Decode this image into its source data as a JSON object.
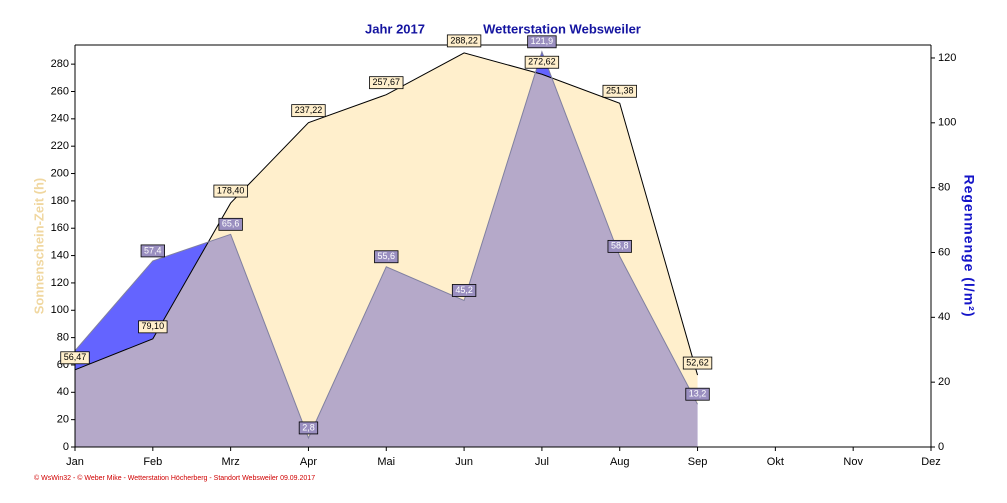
{
  "chart_data": {
    "type": "area",
    "title": "Jahr  2017",
    "subtitle": "Wetterstation Websweiler",
    "ylabel": "Sonnenschein-Zeit  (h)",
    "y2label": "Regenmenge  (l/m²)",
    "footer": "© WsWin32 - © Weber Mike - Wetterstation Höcherberg - Standort Websweiler 09.09.2017",
    "categories": [
      "Jan",
      "Feb",
      "Mrz",
      "Apr",
      "Mai",
      "Jun",
      "Jul",
      "Aug",
      "Sep",
      "Okt",
      "Nov",
      "Dez"
    ],
    "series": [
      {
        "name": "Sonnenschein-Zeit",
        "color": "#ffefcc",
        "values": [
          56.47,
          79.1,
          178.4,
          237.22,
          257.67,
          288.22,
          272.62,
          251.38,
          52.62,
          null,
          null,
          null
        ],
        "value_labels": [
          "56,47",
          "79,10",
          "178,40",
          "237,22",
          "257,67",
          "288,22",
          "272,62",
          "251,38",
          "52,62",
          null,
          null,
          null
        ]
      },
      {
        "name": "Regenmenge",
        "color": "#6464ff",
        "axis": "y2",
        "values": [
          29.7,
          57.4,
          65.6,
          2.8,
          55.6,
          45.2,
          121.9,
          58.8,
          13.2,
          null,
          null,
          null
        ],
        "value_labels": [
          null,
          "57,4",
          "65,6",
          "2,8",
          "55,6",
          "45,2",
          "121,9",
          "58,8",
          "13,2",
          null,
          null,
          null
        ]
      }
    ],
    "overlap_color": "#b5a9c9",
    "ylim": [
      0,
      294
    ],
    "yticks": [
      0,
      20,
      40,
      60,
      80,
      100,
      120,
      140,
      160,
      180,
      200,
      220,
      240,
      260,
      280
    ],
    "y2lim": [
      0,
      124
    ],
    "y2ticks": [
      0,
      20,
      40,
      60,
      80,
      100,
      120
    ]
  }
}
